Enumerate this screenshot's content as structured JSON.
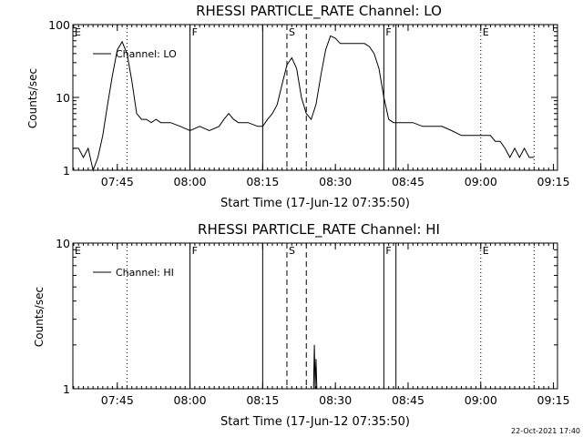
{
  "stamp": "22-Oct-2021 17:40",
  "chart_data": [
    {
      "type": "line",
      "title": "RHESSI PARTICLE_RATE Channel: LO",
      "xlabel": "Start Time (17-Jun-12 07:35:50)",
      "ylabel": "Counts/sec",
      "yscale": "log",
      "ylim": [
        1,
        100
      ],
      "yticks": [
        {
          "v": 1,
          "label": "1"
        },
        {
          "v": 10,
          "label": "10"
        },
        {
          "v": 100,
          "label": "100"
        }
      ],
      "xlim": [
        "07:35:50",
        "09:15:50"
      ],
      "xticks": [
        "07:45",
        "08:00",
        "08:15",
        "08:30",
        "08:45",
        "09:00",
        "09:15"
      ],
      "legend": "Channel: LO",
      "legend_position": "top-left",
      "markers": [
        {
          "time": "07:35:50",
          "label": "E",
          "style": "dotted",
          "draw_line": false
        },
        {
          "time": "07:47:00",
          "label": "",
          "style": "dotted",
          "draw_line": true
        },
        {
          "time": "08:00:00",
          "label": "F",
          "style": "solid",
          "draw_line": true
        },
        {
          "time": "08:15:00",
          "label": "",
          "style": "solid",
          "draw_line": true
        },
        {
          "time": "08:20:00",
          "label": "S",
          "style": "dashed",
          "draw_line": true
        },
        {
          "time": "08:24:00",
          "label": "",
          "style": "dashed",
          "draw_line": true
        },
        {
          "time": "08:40:00",
          "label": "F",
          "style": "solid",
          "draw_line": true
        },
        {
          "time": "08:42:30",
          "label": "",
          "style": "solid",
          "draw_line": true
        },
        {
          "time": "09:00:00",
          "label": "E",
          "style": "dotted",
          "draw_line": true
        },
        {
          "time": "09:11:00",
          "label": "",
          "style": "dotted",
          "draw_line": true
        }
      ],
      "series": [
        {
          "name": "Channel: LO",
          "points": [
            [
              "07:35:50",
              2
            ],
            [
              "07:37:00",
              2
            ],
            [
              "07:38:00",
              1.5
            ],
            [
              "07:39:00",
              2
            ],
            [
              "07:40:00",
              1
            ],
            [
              "07:41:00",
              1.5
            ],
            [
              "07:42:00",
              3
            ],
            [
              "07:43:00",
              8
            ],
            [
              "07:44:00",
              20
            ],
            [
              "07:45:00",
              45
            ],
            [
              "07:46:00",
              58
            ],
            [
              "07:47:00",
              40
            ],
            [
              "07:48:00",
              17
            ],
            [
              "07:49:00",
              6
            ],
            [
              "07:50:00",
              5
            ],
            [
              "07:51:00",
              5
            ],
            [
              "07:52:00",
              4.5
            ],
            [
              "07:53:00",
              5
            ],
            [
              "07:54:00",
              4.5
            ],
            [
              "07:56:00",
              4.5
            ],
            [
              "07:58:00",
              4
            ],
            [
              "08:00:00",
              3.5
            ],
            [
              "08:02:00",
              4
            ],
            [
              "08:04:00",
              3.5
            ],
            [
              "08:06:00",
              4
            ],
            [
              "08:07:00",
              5
            ],
            [
              "08:08:00",
              6
            ],
            [
              "08:09:00",
              5
            ],
            [
              "08:10:00",
              4.5
            ],
            [
              "08:12:00",
              4.5
            ],
            [
              "08:14:00",
              4
            ],
            [
              "08:15:00",
              4
            ],
            [
              "08:16:00",
              5
            ],
            [
              "08:17:00",
              6
            ],
            [
              "08:18:00",
              8
            ],
            [
              "08:19:00",
              15
            ],
            [
              "08:20:00",
              28
            ],
            [
              "08:21:00",
              35
            ],
            [
              "08:22:00",
              25
            ],
            [
              "08:23:00",
              10
            ],
            [
              "08:24:00",
              6
            ],
            [
              "08:25:00",
              5
            ],
            [
              "08:26:00",
              8
            ],
            [
              "08:27:00",
              20
            ],
            [
              "08:28:00",
              45
            ],
            [
              "08:29:00",
              70
            ],
            [
              "08:30:00",
              65
            ],
            [
              "08:31:00",
              55
            ],
            [
              "08:32:00",
              55
            ],
            [
              "08:34:00",
              55
            ],
            [
              "08:36:00",
              55
            ],
            [
              "08:37:00",
              50
            ],
            [
              "08:38:00",
              40
            ],
            [
              "08:39:00",
              25
            ],
            [
              "08:40:00",
              10
            ],
            [
              "08:41:00",
              5
            ],
            [
              "08:42:00",
              4.5
            ],
            [
              "08:44:00",
              4.5
            ],
            [
              "08:46:00",
              4.5
            ],
            [
              "08:48:00",
              4
            ],
            [
              "08:50:00",
              4
            ],
            [
              "08:52:00",
              4
            ],
            [
              "08:54:00",
              3.5
            ],
            [
              "08:56:00",
              3
            ],
            [
              "08:58:00",
              3
            ],
            [
              "09:00:00",
              3
            ],
            [
              "09:02:00",
              3
            ],
            [
              "09:03:00",
              2.5
            ],
            [
              "09:04:00",
              2.5
            ],
            [
              "09:05:00",
              2
            ],
            [
              "09:06:00",
              1.5
            ],
            [
              "09:07:00",
              2
            ],
            [
              "09:08:00",
              1.5
            ],
            [
              "09:09:00",
              2
            ],
            [
              "09:10:00",
              1.5
            ],
            [
              "09:11:00",
              1.5
            ]
          ]
        }
      ]
    },
    {
      "type": "line",
      "title": "RHESSI PARTICLE_RATE Channel: HI",
      "xlabel": "Start Time (17-Jun-12 07:35:50)",
      "ylabel": "Counts/sec",
      "yscale": "log",
      "ylim": [
        1,
        10
      ],
      "yticks": [
        {
          "v": 1,
          "label": "1"
        },
        {
          "v": 10,
          "label": "10"
        }
      ],
      "xlim": [
        "07:35:50",
        "09:15:50"
      ],
      "xticks": [
        "07:45",
        "08:00",
        "08:15",
        "08:30",
        "08:45",
        "09:00",
        "09:15"
      ],
      "legend": "Channel: HI",
      "legend_position": "top-left",
      "markers": [
        {
          "time": "07:35:50",
          "label": "E",
          "style": "dotted",
          "draw_line": false
        },
        {
          "time": "07:47:00",
          "label": "",
          "style": "dotted",
          "draw_line": true
        },
        {
          "time": "08:00:00",
          "label": "F",
          "style": "solid",
          "draw_line": true
        },
        {
          "time": "08:15:00",
          "label": "",
          "style": "solid",
          "draw_line": true
        },
        {
          "time": "08:20:00",
          "label": "S",
          "style": "dashed",
          "draw_line": true
        },
        {
          "time": "08:24:00",
          "label": "",
          "style": "dashed",
          "draw_line": true
        },
        {
          "time": "08:40:00",
          "label": "F",
          "style": "solid",
          "draw_line": true
        },
        {
          "time": "08:42:30",
          "label": "",
          "style": "solid",
          "draw_line": true
        },
        {
          "time": "09:00:00",
          "label": "E",
          "style": "dotted",
          "draw_line": true
        },
        {
          "time": "09:11:00",
          "label": "",
          "style": "dotted",
          "draw_line": true
        }
      ],
      "series": [
        {
          "name": "Channel: HI",
          "points": [
            [
              "08:25:30",
              1
            ],
            [
              "08:25:40",
              2
            ],
            [
              "08:25:50",
              1
            ],
            [
              "08:26:00",
              1.6
            ],
            [
              "08:26:10",
              1
            ]
          ]
        }
      ]
    }
  ]
}
